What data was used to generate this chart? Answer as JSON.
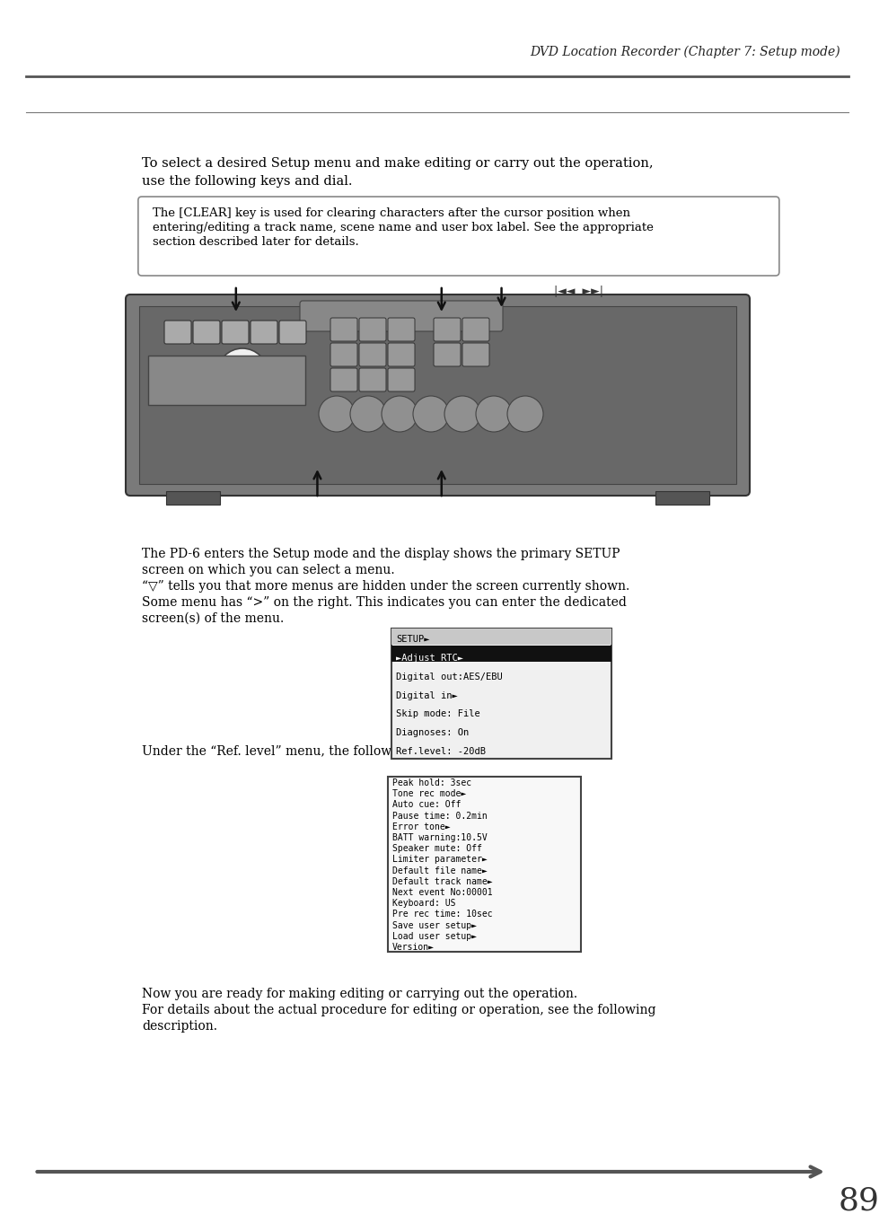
{
  "bg_color": "#ffffff",
  "header_title": "DVD Location Recorder (Chapter 7: Setup mode)",
  "page_number": "89",
  "text_color": "#000000",
  "line_color": "#555555",
  "intro_text_line1": "To select a desired Setup menu and make editing or carry out the operation,",
  "intro_text_line2": "use the following keys and dial.",
  "box_text_line1": "The [CLEAR] key is used for clearing characters after the cursor position when",
  "box_text_line2": "entering/editing a track name, scene name and user box label. See the appropriate",
  "box_text_line3": "section described later for details.",
  "body_text_lines": [
    "The PD-6 enters the Setup mode and the display shows the primary SETUP",
    "screen on which you can select a menu.",
    "“▽” tells you that more menus are hidden under the screen currently shown.",
    "Some menu has “>” on the right. This indicates you can enter the dedicated",
    "screen(s) of the menu."
  ],
  "setup_menu_lines": [
    "SETUP►",
    "►Adjust RTC►",
    "Digital out:AES/EBU",
    "Digital in►",
    "Skip mode: File",
    "Diagnoses: On",
    "Ref.level: -20dB"
  ],
  "hidden_menu_label": "Under the “Ref. level” menu, the following menus are hidden.",
  "hidden_menu_lines": [
    "Peak hold: 3sec",
    "Tone rec mode►",
    "Auto cue: Off",
    "Pause time: 0.2min",
    "Error tone►",
    "BATT warning:10.5V",
    "Speaker mute: Off",
    "Limiter parameter►",
    "Default file name►",
    "Default track name►",
    "Next event No:00001",
    "Keyboard: US",
    "Pre rec time: 10sec",
    "Save user setup►",
    "Load user setup►",
    "Version►"
  ],
  "footer_text_lines": [
    "Now you are ready for making editing or carrying out the operation.",
    "For details about the actual procedure for editing or operation, see the following",
    "description."
  ]
}
